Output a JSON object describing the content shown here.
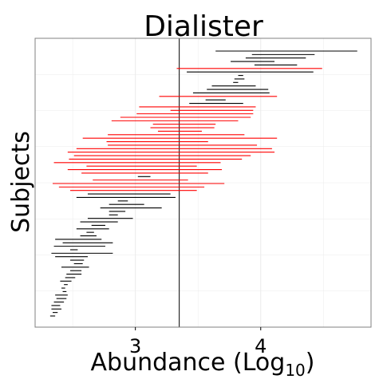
{
  "chart_data": {
    "type": "interval",
    "title": "Dialister",
    "xlabel_main": "Abundance (Log",
    "xlabel_sub": "10",
    "xlabel_close": ")",
    "ylabel": "Subjects",
    "xlim": [
      2.2,
      4.88
    ],
    "x_ticks": [
      3,
      4
    ],
    "x_tick_labels": [
      "3",
      "4"
    ],
    "x_minor_ticks": [
      2.5,
      3.5,
      4.5
    ],
    "reference_line_x": 3.35,
    "grid": true,
    "colors": {
      "black": "#000000",
      "red": "#ff0000",
      "grid": "#ebebeb",
      "panel_border": "#808080",
      "reference": "#000000"
    },
    "intervals": [
      {
        "lo": 3.64,
        "hi": 4.77,
        "color": "black"
      },
      {
        "lo": 3.93,
        "hi": 4.43,
        "color": "black"
      },
      {
        "lo": 3.88,
        "hi": 4.36,
        "color": "black"
      },
      {
        "lo": 3.76,
        "hi": 4.11,
        "color": "black"
      },
      {
        "lo": 3.95,
        "hi": 4.29,
        "color": "black"
      },
      {
        "lo": 3.33,
        "hi": 4.49,
        "color": "red"
      },
      {
        "lo": 3.41,
        "hi": 4.42,
        "color": "black"
      },
      {
        "lo": 3.82,
        "hi": 3.86,
        "color": "black"
      },
      {
        "lo": 3.79,
        "hi": 3.87,
        "color": "black"
      },
      {
        "lo": 3.78,
        "hi": 3.82,
        "color": "black"
      },
      {
        "lo": 3.61,
        "hi": 3.96,
        "color": "black"
      },
      {
        "lo": 3.57,
        "hi": 4.06,
        "color": "black"
      },
      {
        "lo": 3.46,
        "hi": 4.07,
        "color": "black"
      },
      {
        "lo": 3.19,
        "hi": 4.13,
        "color": "red"
      },
      {
        "lo": 3.56,
        "hi": 3.72,
        "color": "black"
      },
      {
        "lo": 3.43,
        "hi": 3.86,
        "color": "black"
      },
      {
        "lo": 3.03,
        "hi": 3.96,
        "color": "red"
      },
      {
        "lo": 3.28,
        "hi": 3.94,
        "color": "red"
      },
      {
        "lo": 3.01,
        "hi": 3.94,
        "color": "red"
      },
      {
        "lo": 2.88,
        "hi": 3.92,
        "color": "red"
      },
      {
        "lo": 2.81,
        "hi": 3.82,
        "color": "red"
      },
      {
        "lo": 3.14,
        "hi": 3.64,
        "color": "red"
      },
      {
        "lo": 3.12,
        "hi": 3.63,
        "color": "red"
      },
      {
        "lo": 3.18,
        "hi": 3.53,
        "color": "red"
      },
      {
        "lo": 2.78,
        "hi": 3.87,
        "color": "red"
      },
      {
        "lo": 2.58,
        "hi": 4.13,
        "color": "red"
      },
      {
        "lo": 2.77,
        "hi": 3.58,
        "color": "red"
      },
      {
        "lo": 2.78,
        "hi": 3.97,
        "color": "red"
      },
      {
        "lo": 2.53,
        "hi": 4.09,
        "color": "red"
      },
      {
        "lo": 2.46,
        "hi": 4.11,
        "color": "red"
      },
      {
        "lo": 2.51,
        "hi": 3.92,
        "color": "red"
      },
      {
        "lo": 2.47,
        "hi": 3.85,
        "color": "red"
      },
      {
        "lo": 2.35,
        "hi": 3.68,
        "color": "red"
      },
      {
        "lo": 2.61,
        "hi": 3.49,
        "color": "red"
      },
      {
        "lo": 2.46,
        "hi": 3.69,
        "color": "red"
      },
      {
        "lo": 2.57,
        "hi": 3.58,
        "color": "red"
      },
      {
        "lo": 3.02,
        "hi": 3.12,
        "color": "black"
      },
      {
        "lo": 2.66,
        "hi": 3.42,
        "color": "red"
      },
      {
        "lo": 2.34,
        "hi": 3.71,
        "color": "red"
      },
      {
        "lo": 2.39,
        "hi": 3.55,
        "color": "red"
      },
      {
        "lo": 2.48,
        "hi": 3.49,
        "color": "red"
      },
      {
        "lo": 2.62,
        "hi": 3.28,
        "color": "black"
      },
      {
        "lo": 2.53,
        "hi": 3.32,
        "color": "black"
      },
      {
        "lo": 2.86,
        "hi": 2.94,
        "color": "black"
      },
      {
        "lo": 2.79,
        "hi": 3.07,
        "color": "black"
      },
      {
        "lo": 2.72,
        "hi": 3.21,
        "color": "black"
      },
      {
        "lo": 2.79,
        "hi": 2.92,
        "color": "black"
      },
      {
        "lo": 2.79,
        "hi": 2.86,
        "color": "black"
      },
      {
        "lo": 2.62,
        "hi": 2.98,
        "color": "black"
      },
      {
        "lo": 2.56,
        "hi": 2.86,
        "color": "black"
      },
      {
        "lo": 2.65,
        "hi": 2.76,
        "color": "black"
      },
      {
        "lo": 2.53,
        "hi": 2.79,
        "color": "black"
      },
      {
        "lo": 2.61,
        "hi": 2.67,
        "color": "black"
      },
      {
        "lo": 2.56,
        "hi": 2.69,
        "color": "black"
      },
      {
        "lo": 2.36,
        "hi": 2.73,
        "color": "black"
      },
      {
        "lo": 2.42,
        "hi": 2.82,
        "color": "black"
      },
      {
        "lo": 2.35,
        "hi": 2.76,
        "color": "black"
      },
      {
        "lo": 2.48,
        "hi": 2.54,
        "color": "black"
      },
      {
        "lo": 2.33,
        "hi": 2.82,
        "color": "black"
      },
      {
        "lo": 2.36,
        "hi": 2.62,
        "color": "black"
      },
      {
        "lo": 2.48,
        "hi": 2.59,
        "color": "black"
      },
      {
        "lo": 2.51,
        "hi": 2.58,
        "color": "black"
      },
      {
        "lo": 2.41,
        "hi": 2.63,
        "color": "black"
      },
      {
        "lo": 2.48,
        "hi": 2.57,
        "color": "black"
      },
      {
        "lo": 2.45,
        "hi": 2.57,
        "color": "black"
      },
      {
        "lo": 2.44,
        "hi": 2.52,
        "color": "black"
      },
      {
        "lo": 2.4,
        "hi": 2.49,
        "color": "black"
      },
      {
        "lo": 2.43,
        "hi": 2.46,
        "color": "black"
      },
      {
        "lo": 2.41,
        "hi": 2.44,
        "color": "black"
      },
      {
        "lo": 2.42,
        "hi": 2.45,
        "color": "black"
      },
      {
        "lo": 2.36,
        "hi": 2.46,
        "color": "black"
      },
      {
        "lo": 2.37,
        "hi": 2.45,
        "color": "black"
      },
      {
        "lo": 2.35,
        "hi": 2.43,
        "color": "black"
      },
      {
        "lo": 2.33,
        "hi": 2.4,
        "color": "black"
      },
      {
        "lo": 2.33,
        "hi": 2.41,
        "color": "black"
      },
      {
        "lo": 2.34,
        "hi": 2.38,
        "color": "black"
      },
      {
        "lo": 2.32,
        "hi": 2.36,
        "color": "black"
      }
    ]
  }
}
